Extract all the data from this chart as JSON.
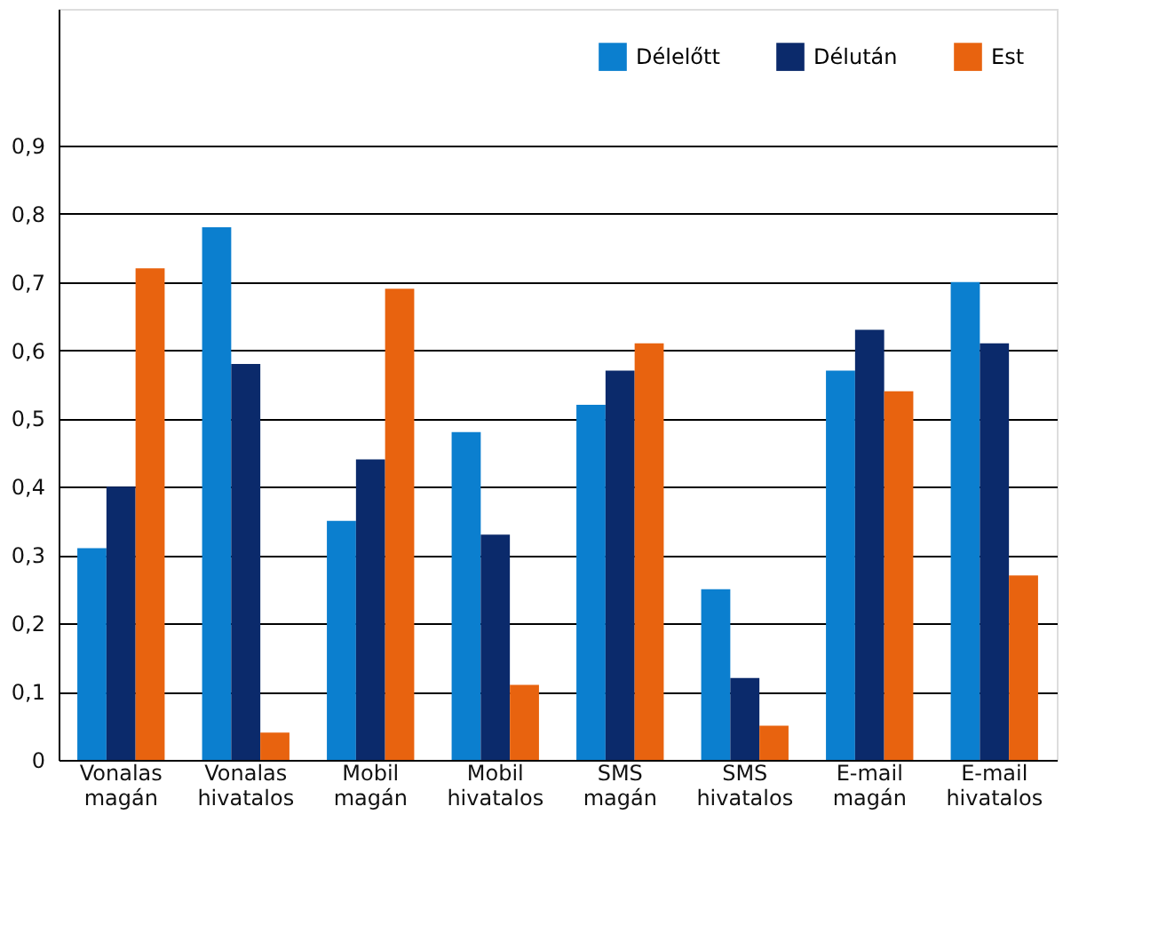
{
  "chart_data": {
    "type": "bar",
    "categories": [
      "Vonalas magán",
      "Vonalas hivatalos",
      "Mobil magán",
      "Mobil hivatalos",
      "SMS magán",
      "SMS hivatalos",
      "E-mail magán",
      "E-mail hivatalos"
    ],
    "series": [
      {
        "name": "Délelőtt",
        "color": "#0b7fcf",
        "values": [
          0.31,
          0.78,
          0.35,
          0.48,
          0.52,
          0.25,
          0.57,
          0.7
        ]
      },
      {
        "name": "Délután",
        "color": "#0b2a6b",
        "values": [
          0.4,
          0.58,
          0.44,
          0.33,
          0.57,
          0.12,
          0.63,
          0.61
        ]
      },
      {
        "name": "Est",
        "color": "#e8630f",
        "values": [
          0.72,
          0.04,
          0.69,
          0.11,
          0.61,
          0.05,
          0.54,
          0.27
        ]
      }
    ],
    "ylim": [
      0,
      1.1
    ],
    "yticks": [
      0,
      {
        "value": 0.1,
        "label": "0,1"
      },
      {
        "value": 0.2,
        "label": "0,2"
      },
      {
        "value": 0.3,
        "label": "0,3"
      },
      {
        "value": 0.4,
        "label": "0,4"
      },
      {
        "value": 0.5,
        "label": "0,5"
      },
      {
        "value": 0.6,
        "label": "0,6"
      },
      {
        "value": 0.7,
        "label": "0,7"
      },
      {
        "value": 0.8,
        "label": "0,8"
      },
      {
        "value": 0.9,
        "label": "0,9"
      }
    ],
    "grid": "y",
    "legend": "top right"
  }
}
